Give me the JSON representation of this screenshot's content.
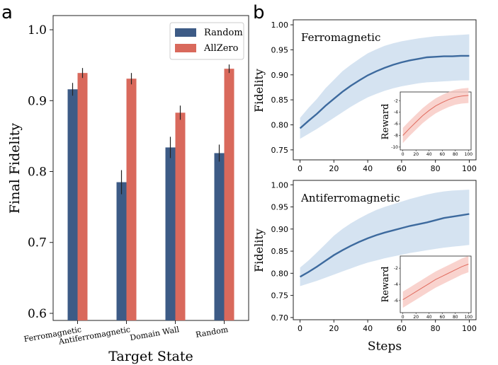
{
  "panel_labels": {
    "a": "a",
    "b": "b"
  },
  "colors": {
    "random": "#3d5b86",
    "allzero": "#d9695c",
    "band": "#c7d9ec",
    "line": "#3d6a9e",
    "inset_line": "#e06b5e",
    "inset_band": "#f7c8c2"
  },
  "chart_data": [
    {
      "type": "bar",
      "xlabel": "Target State",
      "ylabel": "Final Fidelity",
      "categories": [
        "Ferromagnetic",
        "Antiferromagnetic",
        "Domain Wall",
        "Random"
      ],
      "series": [
        {
          "name": "Random",
          "values": [
            0.916,
            0.785,
            0.834,
            0.826
          ],
          "errors": [
            0.009,
            0.017,
            0.015,
            0.012
          ]
        },
        {
          "name": "AllZero",
          "values": [
            0.939,
            0.931,
            0.883,
            0.945
          ],
          "errors": [
            0.007,
            0.008,
            0.01,
            0.006
          ]
        }
      ],
      "ylim": [
        0.59,
        1.02
      ],
      "yticks": [
        "0.6",
        "0.7",
        "0.8",
        "0.9",
        "1.0"
      ],
      "legend": "top-right"
    },
    {
      "type": "line",
      "annotation": "Ferromagnetic",
      "xlabel": "",
      "ylabel": "Fidelity",
      "x": [
        0,
        5,
        10,
        15,
        20,
        25,
        30,
        35,
        40,
        45,
        50,
        55,
        60,
        65,
        70,
        75,
        80,
        85,
        90,
        95,
        100
      ],
      "y": [
        0.793,
        0.808,
        0.822,
        0.838,
        0.852,
        0.866,
        0.878,
        0.889,
        0.899,
        0.907,
        0.914,
        0.92,
        0.925,
        0.929,
        0.932,
        0.935,
        0.936,
        0.937,
        0.937,
        0.938,
        0.938
      ],
      "band_lower": [
        0.772,
        0.782,
        0.792,
        0.803,
        0.814,
        0.825,
        0.836,
        0.846,
        0.855,
        0.862,
        0.868,
        0.873,
        0.877,
        0.88,
        0.883,
        0.885,
        0.886,
        0.887,
        0.888,
        0.889,
        0.889
      ],
      "band_upper": [
        0.814,
        0.834,
        0.852,
        0.873,
        0.89,
        0.907,
        0.92,
        0.932,
        0.943,
        0.951,
        0.958,
        0.963,
        0.967,
        0.97,
        0.973,
        0.975,
        0.977,
        0.978,
        0.979,
        0.98,
        0.981
      ],
      "xlim": [
        -4,
        104
      ],
      "ylim": [
        0.73,
        1.01
      ],
      "xticks": [
        "0",
        "20",
        "40",
        "60",
        "80",
        "100"
      ],
      "yticks": [
        "0.75",
        "0.80",
        "0.85",
        "0.90",
        "0.95",
        "1.00"
      ],
      "inset": {
        "ylabel": "Reward",
        "xticks": [
          "0",
          "20",
          "40",
          "60",
          "80",
          "100"
        ],
        "yticks": [
          "-10",
          "-8",
          "-6",
          "-4",
          "-2"
        ],
        "x": [
          0,
          10,
          20,
          30,
          40,
          50,
          60,
          70,
          80,
          90,
          100
        ],
        "y": [
          -8.0,
          -6.8,
          -5.7,
          -4.6,
          -3.7,
          -2.9,
          -2.3,
          -1.8,
          -1.4,
          -1.2,
          -1.1
        ],
        "band": 1.3,
        "ylim": [
          -10.5,
          -0.5
        ],
        "xlim": [
          -4,
          104
        ]
      }
    },
    {
      "type": "line",
      "annotation": "Antiferromagnetic",
      "xlabel": "Steps",
      "ylabel": "Fidelity",
      "x": [
        0,
        5,
        10,
        15,
        20,
        25,
        30,
        35,
        40,
        45,
        50,
        55,
        60,
        65,
        70,
        75,
        80,
        85,
        90,
        95,
        100
      ],
      "y": [
        0.792,
        0.803,
        0.815,
        0.828,
        0.841,
        0.852,
        0.862,
        0.871,
        0.879,
        0.886,
        0.892,
        0.897,
        0.902,
        0.907,
        0.911,
        0.915,
        0.92,
        0.925,
        0.928,
        0.931,
        0.934
      ],
      "band_lower": [
        0.771,
        0.777,
        0.783,
        0.79,
        0.797,
        0.804,
        0.811,
        0.818,
        0.824,
        0.829,
        0.834,
        0.838,
        0.842,
        0.846,
        0.849,
        0.852,
        0.855,
        0.858,
        0.86,
        0.862,
        0.864
      ],
      "band_upper": [
        0.813,
        0.829,
        0.847,
        0.866,
        0.885,
        0.9,
        0.913,
        0.924,
        0.934,
        0.943,
        0.95,
        0.956,
        0.962,
        0.968,
        0.973,
        0.978,
        0.982,
        0.985,
        0.987,
        0.988,
        0.989
      ],
      "xlim": [
        -4,
        104
      ],
      "ylim": [
        0.695,
        1.01
      ],
      "xticks": [
        "0",
        "20",
        "40",
        "60",
        "80",
        "100"
      ],
      "yticks": [
        "0.70",
        "0.75",
        "0.80",
        "0.85",
        "0.90",
        "0.95",
        "1.00"
      ],
      "inset": {
        "ylabel": "Reward",
        "xticks": [
          "0",
          "20",
          "40",
          "60",
          "80",
          "100"
        ],
        "yticks": [
          "-6",
          "-4",
          "-2"
        ],
        "x": [
          0,
          10,
          20,
          30,
          40,
          50,
          60,
          70,
          80,
          90,
          100
        ],
        "y": [
          -5.9,
          -5.4,
          -4.9,
          -4.4,
          -3.9,
          -3.4,
          -3.0,
          -2.6,
          -2.2,
          -1.8,
          -1.5
        ],
        "band": 1.0,
        "ylim": [
          -7.5,
          -0.5
        ],
        "xlim": [
          -4,
          104
        ]
      }
    }
  ]
}
